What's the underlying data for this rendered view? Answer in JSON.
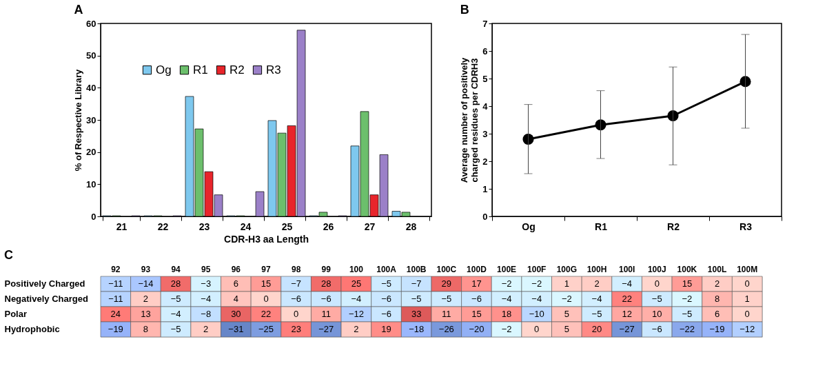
{
  "chart_data": [
    {
      "type": "bar",
      "title": "A",
      "xlabel": "CDR-H3 aa Length",
      "ylabel": "% of Respective Library",
      "categories": [
        "21",
        "22",
        "23",
        "24",
        "25",
        "26",
        "27",
        "28"
      ],
      "series": [
        {
          "name": "Og",
          "color": "#7ec8ee",
          "values": [
            0.2,
            0.2,
            37.3,
            0.2,
            29.8,
            0.2,
            21.9,
            1.6
          ]
        },
        {
          "name": "R1",
          "color": "#6cbf6c",
          "values": [
            0.2,
            0.2,
            27.2,
            0.2,
            25.9,
            1.3,
            32.6,
            1.3
          ]
        },
        {
          "name": "R2",
          "color": "#e8252b",
          "values": [
            null,
            null,
            13.9,
            null,
            28.2,
            null,
            6.7,
            null
          ]
        },
        {
          "name": "R3",
          "color": "#9b80c8",
          "values": [
            0.2,
            0.2,
            6.7,
            7.7,
            57.9,
            0.2,
            19.2,
            null
          ]
        }
      ],
      "ylim": [
        0,
        60
      ],
      "yticks": [
        0,
        10,
        20,
        30,
        40,
        50,
        60
      ],
      "grid": false,
      "legend": "top left"
    },
    {
      "type": "line",
      "title": "B",
      "ylabel": "Average number of positively charged residues per CDRH3",
      "categories": [
        "Og",
        "R1",
        "R2",
        "R3"
      ],
      "series": [
        {
          "color": "#000000",
          "values": [
            2.8,
            3.32,
            3.65,
            4.89
          ],
          "errors": [
            [
              1.55,
              4.06
            ],
            [
              2.1,
              4.56
            ],
            [
              1.87,
              5.42
            ],
            [
              3.2,
              6.6
            ]
          ]
        }
      ],
      "ylim": [
        0,
        7
      ],
      "yticks": [
        0,
        1,
        2,
        3,
        4,
        5,
        6,
        7
      ],
      "grid": false,
      "marker": "circle",
      "line_style": "solid"
    },
    {
      "type": "heatmap",
      "title": "C",
      "categories": [
        "92",
        "93",
        "94",
        "95",
        "96",
        "97",
        "98",
        "99",
        "100",
        "100A",
        "100B",
        "100C",
        "100D",
        "100E",
        "100F",
        "100G",
        "100H",
        "100I",
        "100J",
        "100K",
        "100L",
        "100M"
      ],
      "y_categories": [
        "Positively Charged",
        "Negatively Charged",
        "Polar",
        "Hydrophobic"
      ],
      "cells": [
        [
          -11,
          -14,
          28,
          -3,
          6,
          15,
          -7,
          28,
          25,
          -5,
          -7,
          29,
          17,
          -2,
          -2,
          1,
          2,
          -4,
          0,
          15,
          2,
          0
        ],
        [
          -11,
          2,
          -5,
          -4,
          4,
          0,
          -6,
          -6,
          -4,
          -6,
          -5,
          -5,
          -6,
          -4,
          -4,
          -2,
          -4,
          22,
          -5,
          -2,
          8,
          1
        ],
        [
          24,
          13,
          -4,
          -8,
          30,
          22,
          0,
          11,
          -12,
          -6,
          33,
          11,
          15,
          18,
          -10,
          5,
          -5,
          12,
          10,
          -5,
          6,
          0
        ],
        [
          -19,
          8,
          -5,
          2,
          -31,
          -25,
          23,
          -27,
          2,
          19,
          -18,
          -26,
          -20,
          -2,
          0,
          5,
          20,
          -27,
          -6,
          -22,
          -19,
          -12
        ]
      ],
      "data_labels": true
    }
  ]
}
